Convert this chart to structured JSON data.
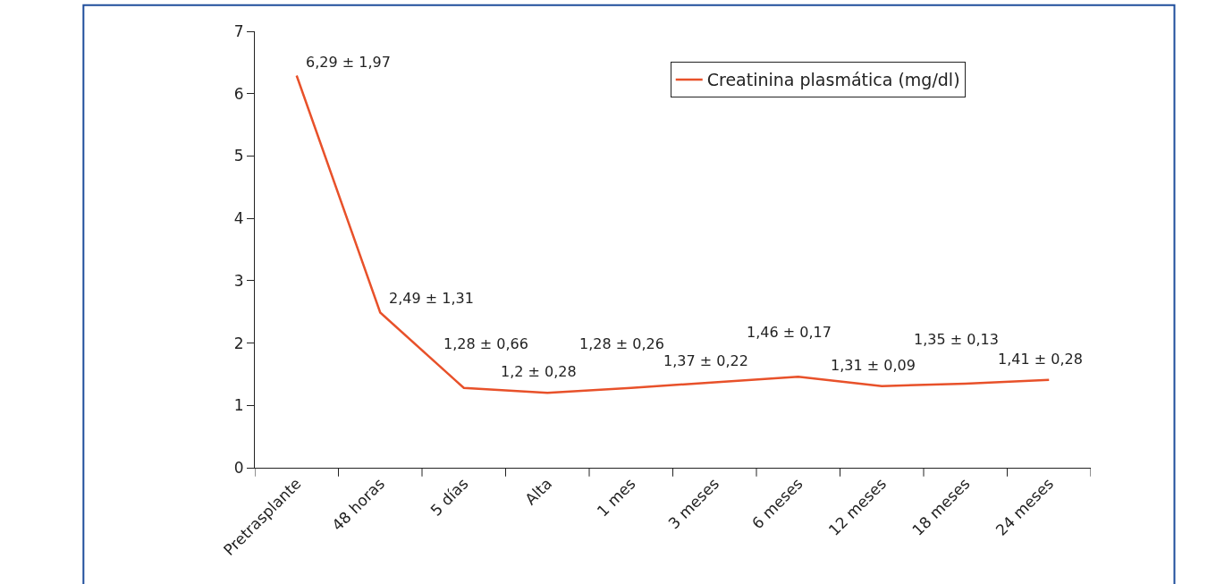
{
  "chart_data": {
    "type": "line",
    "categories": [
      "Pretrasplante",
      "48 horas",
      "5 días",
      "Alta",
      "1 mes",
      "3 meses",
      "6 meses",
      "12 meses",
      "18 meses",
      "24 meses"
    ],
    "series": [
      {
        "name": "Creatinina plasmática (mg/dl)",
        "color": "#e8512a",
        "values": [
          6.29,
          2.49,
          1.28,
          1.2,
          1.28,
          1.37,
          1.46,
          1.31,
          1.35,
          1.41
        ],
        "value_labels": [
          "6,29 ± 1,97",
          "2,49 ± 1,31",
          "1,28 ± 0,66",
          "1,2 ± 0,28",
          "1,28 ± 0,26",
          "1,37 ± 0,22",
          "1,46 ± 0,17",
          "1,31 ± 0,09",
          "1,35 ± 0,13",
          "1,41 ± 0,28"
        ]
      }
    ],
    "ylim": [
      0,
      7
    ],
    "yticks": [
      0,
      1,
      2,
      3,
      4,
      5,
      6,
      7
    ],
    "legend": "top right",
    "marker": "none",
    "line_style": "solid"
  }
}
